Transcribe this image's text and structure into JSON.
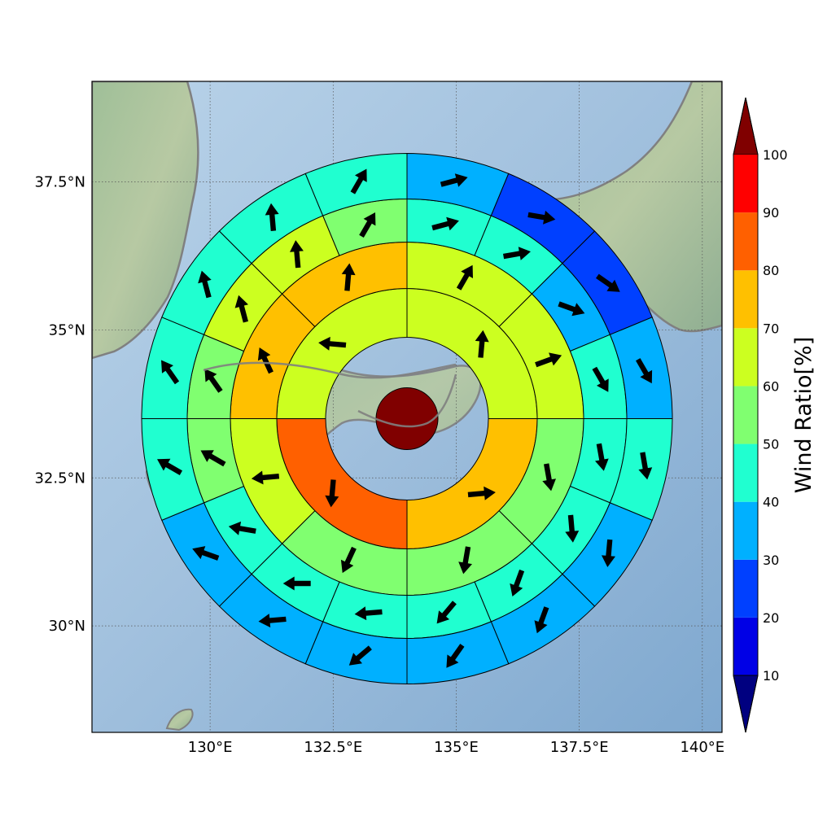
{
  "chart_data": {
    "type": "polar-sector-map",
    "title": "",
    "xlabel": "",
    "ylabel": "",
    "x_ticks": [
      "130°E",
      "132.5°E",
      "135°E",
      "137.5°E",
      "140°E"
    ],
    "y_ticks": [
      "30°N",
      "32.5°N",
      "35°N",
      "37.5°N"
    ],
    "map_extent": {
      "lon": [
        127.6,
        140.4
      ],
      "lat": [
        28.2,
        39.2
      ]
    },
    "grid": true,
    "center": {
      "lon": 134.0,
      "lat": 33.5
    },
    "colorbar": {
      "label": "Wind Ratio[%]",
      "ticks": [
        "10",
        "20",
        "30",
        "40",
        "50",
        "60",
        "70",
        "80",
        "90",
        "100"
      ],
      "boundaries": [
        10,
        20,
        30,
        40,
        50,
        60,
        70,
        80,
        90,
        100
      ],
      "colors": [
        "#0000e6",
        "#0040ff",
        "#00b0ff",
        "#20ffd0",
        "#80ff70",
        "#ccff20",
        "#ffc000",
        "#ff6000",
        "#ff0000"
      ],
      "under_color": "#000080",
      "over_color": "#800000",
      "extend": "both"
    },
    "center_value": 105,
    "rings": [
      {
        "sectors": 4,
        "values": [
          65,
          75,
          85,
          60
        ],
        "wind_deg": [
          5,
          85,
          185,
          275
        ]
      },
      {
        "sectors": 8,
        "values": [
          65,
          60,
          50,
          55,
          50,
          60,
          75,
          70
        ],
        "wind_deg": [
          30,
          70,
          170,
          190,
          205,
          265,
          335,
          5
        ]
      },
      {
        "sectors": 16,
        "values": [
          45,
          45,
          35,
          45,
          45,
          45,
          45,
          40,
          40,
          40,
          45,
          50,
          55,
          65,
          65,
          55
        ],
        "wind_deg": [
          75,
          80,
          110,
          150,
          170,
          175,
          200,
          220,
          265,
          270,
          280,
          300,
          325,
          345,
          355,
          30
        ]
      },
      {
        "sectors": 16,
        "values": [
          35,
          25,
          25,
          35,
          45,
          35,
          35,
          35,
          35,
          35,
          35,
          45,
          45,
          45,
          45,
          45
        ],
        "wind_deg": [
          75,
          100,
          125,
          150,
          170,
          185,
          200,
          215,
          230,
          265,
          290,
          300,
          325,
          345,
          355,
          30
        ]
      },
      {
        "sectors": 16,
        "values": [
          35,
          25,
          25,
          25,
          25,
          25,
          25,
          25,
          25,
          25,
          25,
          35,
          35,
          45,
          45,
          45
        ],
        "wind_deg": [
          75,
          100,
          120,
          130,
          150,
          175,
          200,
          215,
          230,
          260,
          285,
          300,
          325,
          345,
          355,
          30
        ]
      }
    ]
  }
}
